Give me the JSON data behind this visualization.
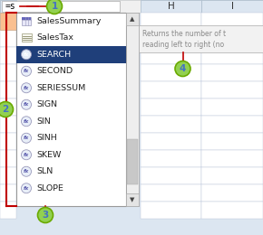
{
  "formula_bar_text": "=s",
  "dropdown_items": [
    {
      "label": "SalesSummary",
      "type": "table",
      "selected": false
    },
    {
      "label": "SalesTax",
      "type": "named_range",
      "selected": false
    },
    {
      "label": "SEARCH",
      "type": "fx",
      "selected": true
    },
    {
      "label": "SECOND",
      "type": "fx",
      "selected": false
    },
    {
      "label": "SERIESSUM",
      "type": "fx",
      "selected": false
    },
    {
      "label": "SIGN",
      "type": "fx",
      "selected": false
    },
    {
      "label": "SIN",
      "type": "fx",
      "selected": false
    },
    {
      "label": "SINH",
      "type": "fx",
      "selected": false
    },
    {
      "label": "SKEW",
      "type": "fx",
      "selected": false
    },
    {
      "label": "SLN",
      "type": "fx",
      "selected": false
    },
    {
      "label": "SLOPE",
      "type": "fx",
      "selected": false
    }
  ],
  "tooltip_line1": "Returns the number of t",
  "tooltip_line2": "reading left to right (no",
  "col_H_label": "H",
  "col_I_label": "I",
  "bg_color": "#dce6f1",
  "dropdown_bg": "#ffffff",
  "selected_color": "#1f3f7a",
  "selected_text_color": "#ffffff",
  "border_color": "#999999",
  "callout_circle_color": "#92d050",
  "callout_circle_border": "#6aaa00",
  "callout_line_color": "#c00000",
  "col_header_bg": "#dce6f1",
  "cell_border": "#b8c4d8",
  "tooltip_bg": "#f2f2f2",
  "tooltip_border": "#aaaaaa",
  "tooltip_text_color": "#888888",
  "orange_cell_color": "#fac090",
  "callout_number_color": "#4472c4",
  "scrollbar_thumb": "#c8c8c8",
  "scrollbar_track": "#eeeeee"
}
